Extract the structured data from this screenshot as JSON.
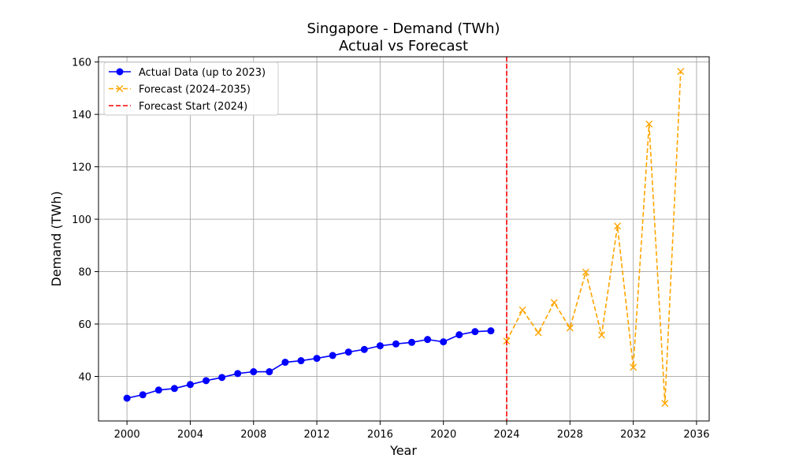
{
  "chart_data": {
    "type": "line",
    "title": "Singapore - Demand (TWh)",
    "subtitle": "Actual vs Forecast",
    "xlabel": "Year",
    "ylabel": "Demand (TWh)",
    "xlim": [
      1998.2,
      2036.8
    ],
    "ylim": [
      23,
      162
    ],
    "x_ticks": [
      2000,
      2004,
      2008,
      2012,
      2016,
      2020,
      2024,
      2028,
      2032,
      2036
    ],
    "y_ticks": [
      40,
      60,
      80,
      100,
      120,
      140,
      160
    ],
    "grid": true,
    "legend_position": "top-left",
    "series": [
      {
        "name": "Actual Data (up to 2023)",
        "color": "#0000ff",
        "marker": "circle",
        "line_style": "solid",
        "x": [
          2000,
          2001,
          2002,
          2003,
          2004,
          2005,
          2006,
          2007,
          2008,
          2009,
          2010,
          2011,
          2012,
          2013,
          2014,
          2015,
          2016,
          2017,
          2018,
          2019,
          2020,
          2021,
          2022,
          2023
        ],
        "y": [
          31.7,
          33.0,
          34.8,
          35.4,
          36.9,
          38.4,
          39.6,
          41.1,
          41.8,
          41.8,
          45.4,
          46.0,
          46.9,
          48.0,
          49.3,
          50.3,
          51.7,
          52.4,
          53.0,
          54.1,
          53.2,
          55.9,
          57.1,
          57.4
        ]
      },
      {
        "name": "Forecast (2024–2035)",
        "color": "#ffa500",
        "marker": "x",
        "line_style": "dashed",
        "x": [
          2024,
          2025,
          2026,
          2027,
          2028,
          2029,
          2030,
          2031,
          2032,
          2033,
          2034,
          2035
        ],
        "y": [
          53.5,
          65.4,
          56.7,
          68.2,
          58.5,
          79.8,
          55.8,
          97.4,
          43.5,
          136.3,
          29.7,
          156.4
        ]
      }
    ],
    "vlines": [
      {
        "name": "Forecast Start (2024)",
        "x": 2024,
        "color": "#ff0000",
        "line_style": "dashed"
      }
    ]
  }
}
